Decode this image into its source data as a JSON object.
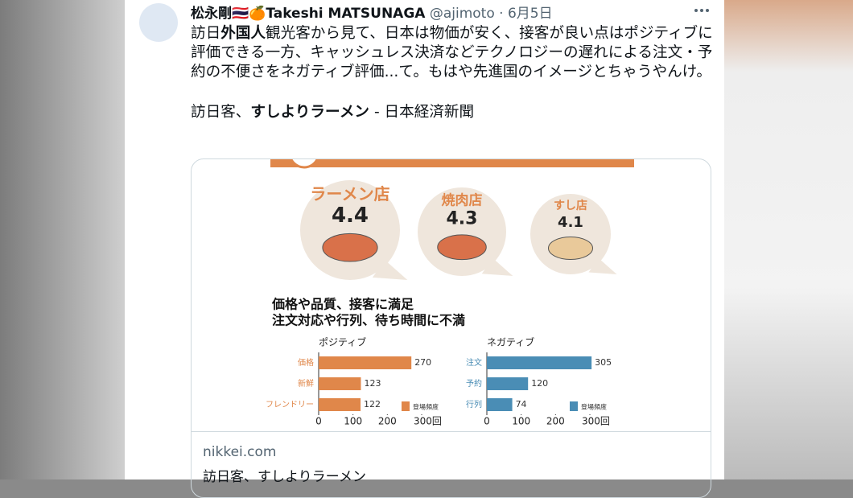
{
  "tweet": {
    "author": "松永剛🇹🇭🍊Takeshi MATSUNAGA",
    "handle": "@ajimoto",
    "separator": "·",
    "date": "6月5日",
    "body": [
      [
        "訪日",
        "外国人",
        "観光客から見て、日本は物価が安く、接客が良い点はポジティブに評価できる一方、キャッシュレス決済などテクノロジーの遅れによる注文・予約の不便さをネガティブ評価...て。もはや先進国のイメージとちゃうやんけ。"
      ],
      [
        "訪日客、",
        "すしよりラーメン",
        " - 日本経済新聞"
      ]
    ]
  },
  "infographic": {
    "ratings": [
      {
        "name": "ラーメン店",
        "score": "4.4"
      },
      {
        "name": "焼肉店",
        "score": "4.3"
      },
      {
        "name": "すし店",
        "score": "4.1"
      }
    ],
    "headlines": [
      "価格や品質、接客に満足",
      "注文対応や行列、待ち時間に不満"
    ]
  },
  "chart_data": [
    {
      "type": "bar",
      "title": "ポジティブ",
      "categories": [
        "価格",
        "新鮮",
        "フレンドリー"
      ],
      "series": [
        {
          "name": "登場頻度",
          "color": "#e0874a",
          "values": [
            270,
            123,
            122
          ]
        }
      ],
      "xlim": [
        0,
        300
      ],
      "xticks": [
        0,
        100,
        200,
        {
          "value": 300,
          "label": "300回"
        }
      ]
    },
    {
      "type": "bar",
      "title": "ネガティブ",
      "categories": [
        "注文",
        "予約",
        "行列"
      ],
      "series": [
        {
          "name": "登場頻度",
          "color": "#4a8db5",
          "values": [
            305,
            120,
            74
          ]
        }
      ],
      "xlim": [
        0,
        300
      ],
      "xticks": [
        0,
        100,
        200,
        {
          "value": 300,
          "label": "300回"
        }
      ]
    }
  ],
  "link_card": {
    "domain": "nikkei.com",
    "title": "訪日客、すしよりラーメン"
  }
}
